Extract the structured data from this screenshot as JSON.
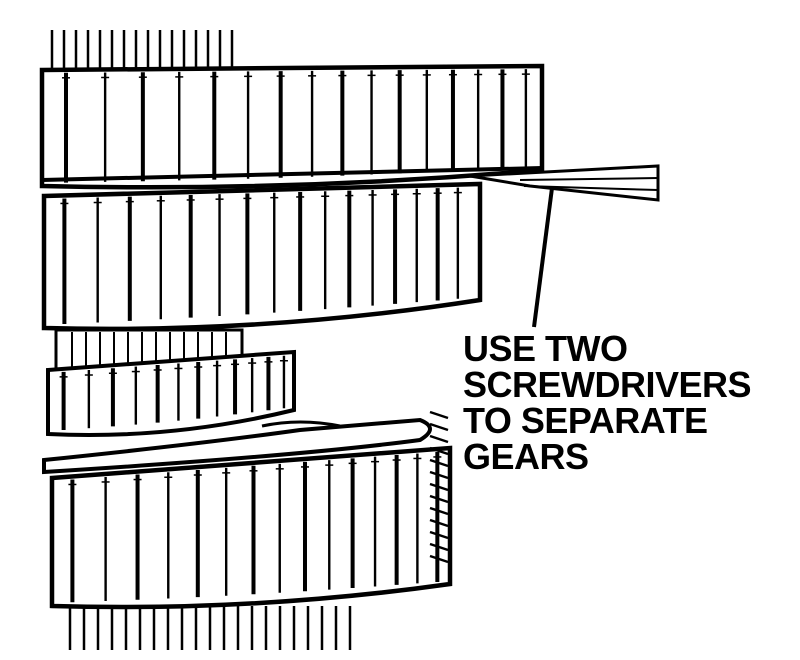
{
  "callout": {
    "lines": [
      "USE TWO",
      "SCREWDRIVERS",
      "TO SEPARATE",
      "GEARS"
    ]
  },
  "colors": {
    "ink": "#000000",
    "paper": "#ffffff"
  }
}
